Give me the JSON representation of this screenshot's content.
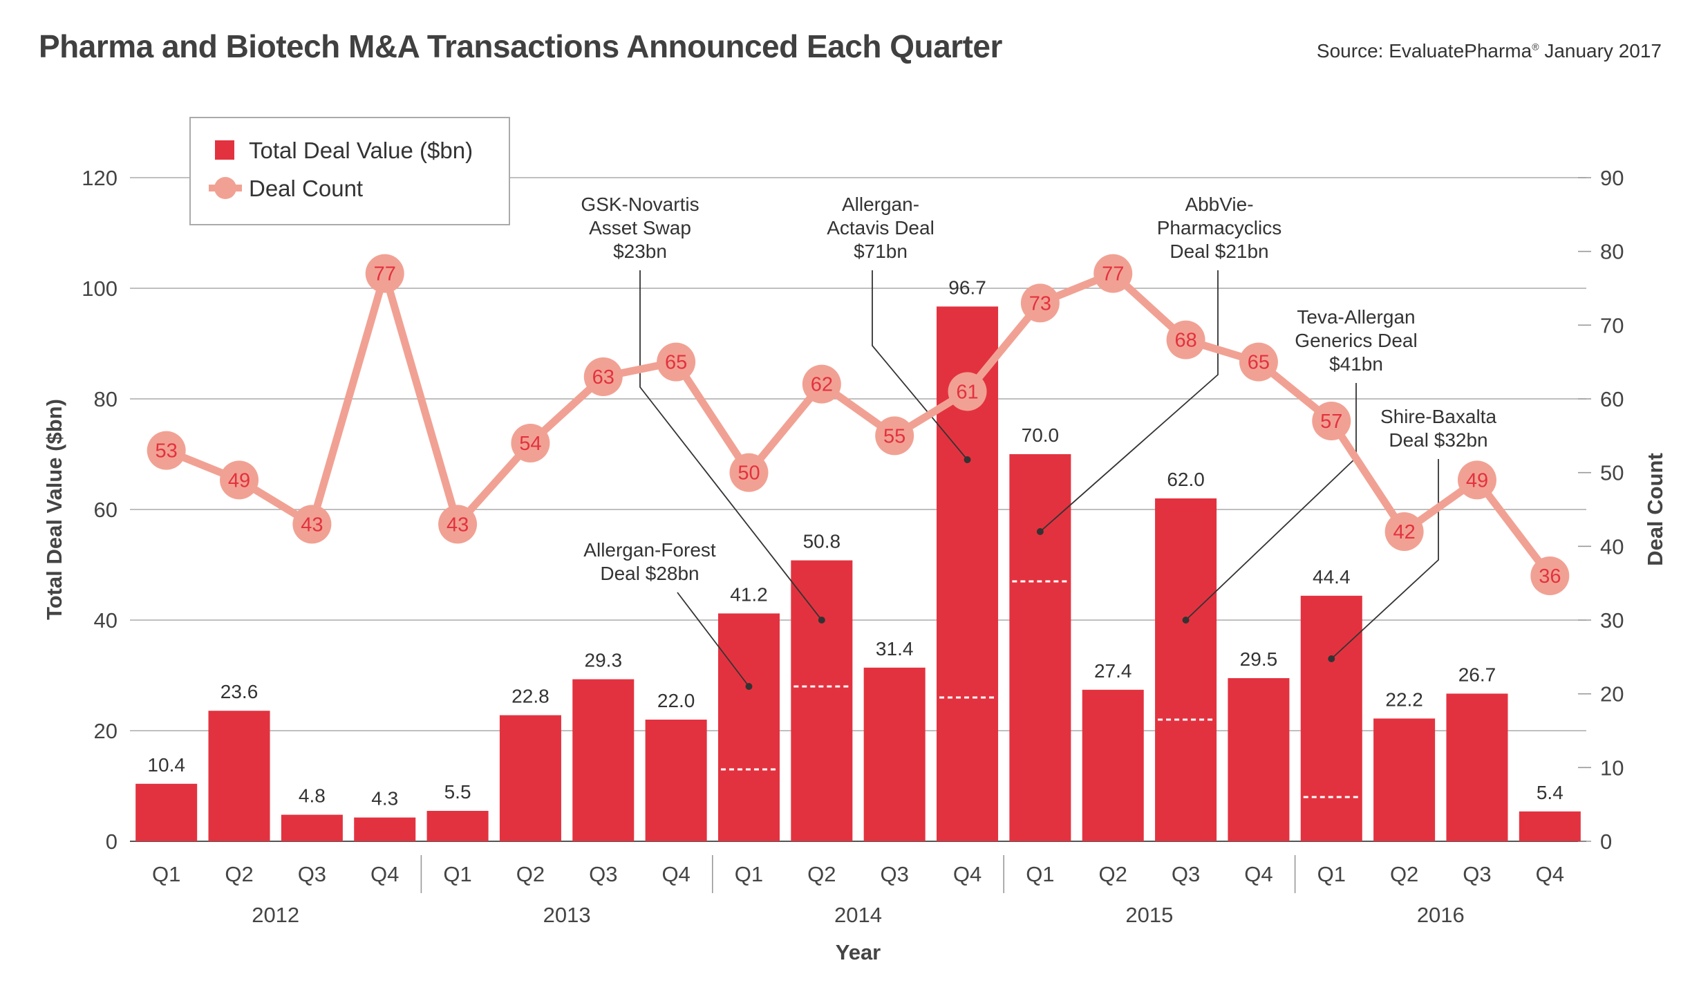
{
  "title": "Pharma and Biotech M&A Transactions Announced Each Quarter",
  "source": {
    "text": "Source: EvaluatePharma",
    "mark": "®",
    "date": "January 2017"
  },
  "chart_data": {
    "type": "bar",
    "xlabel": "Year",
    "ylabel": "Total Deal Value ($bn)",
    "y2label": "Deal Count",
    "ylim": [
      0,
      120
    ],
    "y2lim": [
      0,
      90
    ],
    "yticks": [
      "0",
      "20",
      "40",
      "60",
      "80",
      "100",
      "120"
    ],
    "y2ticks": [
      "0",
      "10",
      "20",
      "30",
      "40",
      "50",
      "60",
      "70",
      "80",
      "90"
    ],
    "grid": true,
    "legend_position": "top-left",
    "categories": [
      "Q1",
      "Q2",
      "Q3",
      "Q4",
      "Q1",
      "Q2",
      "Q3",
      "Q4",
      "Q1",
      "Q2",
      "Q3",
      "Q4",
      "Q1",
      "Q2",
      "Q3",
      "Q4",
      "Q1",
      "Q2",
      "Q3",
      "Q4"
    ],
    "years": [
      "2012",
      "2013",
      "2014",
      "2015",
      "2016"
    ],
    "series": [
      {
        "name": "Total Deal Value ($bn)",
        "type": "bar",
        "color": "#e3323f",
        "values": [
          10.4,
          23.6,
          4.8,
          4.3,
          5.5,
          22.8,
          29.3,
          22.0,
          41.2,
          50.8,
          31.4,
          96.7,
          70.0,
          27.4,
          62.0,
          29.5,
          44.4,
          22.2,
          26.7,
          5.4
        ],
        "labels": [
          "10.4",
          "23.6",
          "4.8",
          "4.3",
          "5.5",
          "22.8",
          "29.3",
          "22.0",
          "41.2",
          "50.8",
          "31.4",
          "96.7",
          "70.0",
          "27.4",
          "62.0",
          "29.5",
          "44.4",
          "22.2",
          "26.7",
          "5.4"
        ]
      },
      {
        "name": "Deal Count",
        "type": "line",
        "axis": "right",
        "color": "#f1a193",
        "values": [
          53,
          49,
          43,
          77,
          43,
          54,
          63,
          65,
          50,
          62,
          55,
          61,
          73,
          77,
          68,
          65,
          57,
          42,
          49,
          36
        ]
      }
    ],
    "bar_markers": [
      {
        "index": 8,
        "value": 13
      },
      {
        "index": 9,
        "value": 28
      },
      {
        "index": 11,
        "value": 26
      },
      {
        "index": 12,
        "value": 47
      },
      {
        "index": 14,
        "value": 22
      },
      {
        "index": 16,
        "value": 8
      }
    ],
    "annotations": [
      {
        "lines": [
          "Allergan-Forest",
          "Deal $28bn"
        ],
        "index": 8,
        "value": 28
      },
      {
        "lines": [
          "GSK-Novartis",
          "Asset Swap",
          "$23bn"
        ],
        "index": 9,
        "value": 40
      },
      {
        "lines": [
          "Allergan-",
          "Actavis Deal",
          "$71bn"
        ],
        "index": 11,
        "value": 69
      },
      {
        "lines": [
          "AbbVie-",
          "Pharmacyclics",
          "Deal $21bn"
        ],
        "index": 12,
        "value": 56
      },
      {
        "lines": [
          "Teva-Allergan",
          "Generics Deal",
          "$41bn"
        ],
        "index": 14,
        "value": 40
      },
      {
        "lines": [
          "Shire-Baxalta",
          "Deal $32bn"
        ],
        "index": 16,
        "value": 33
      }
    ]
  }
}
